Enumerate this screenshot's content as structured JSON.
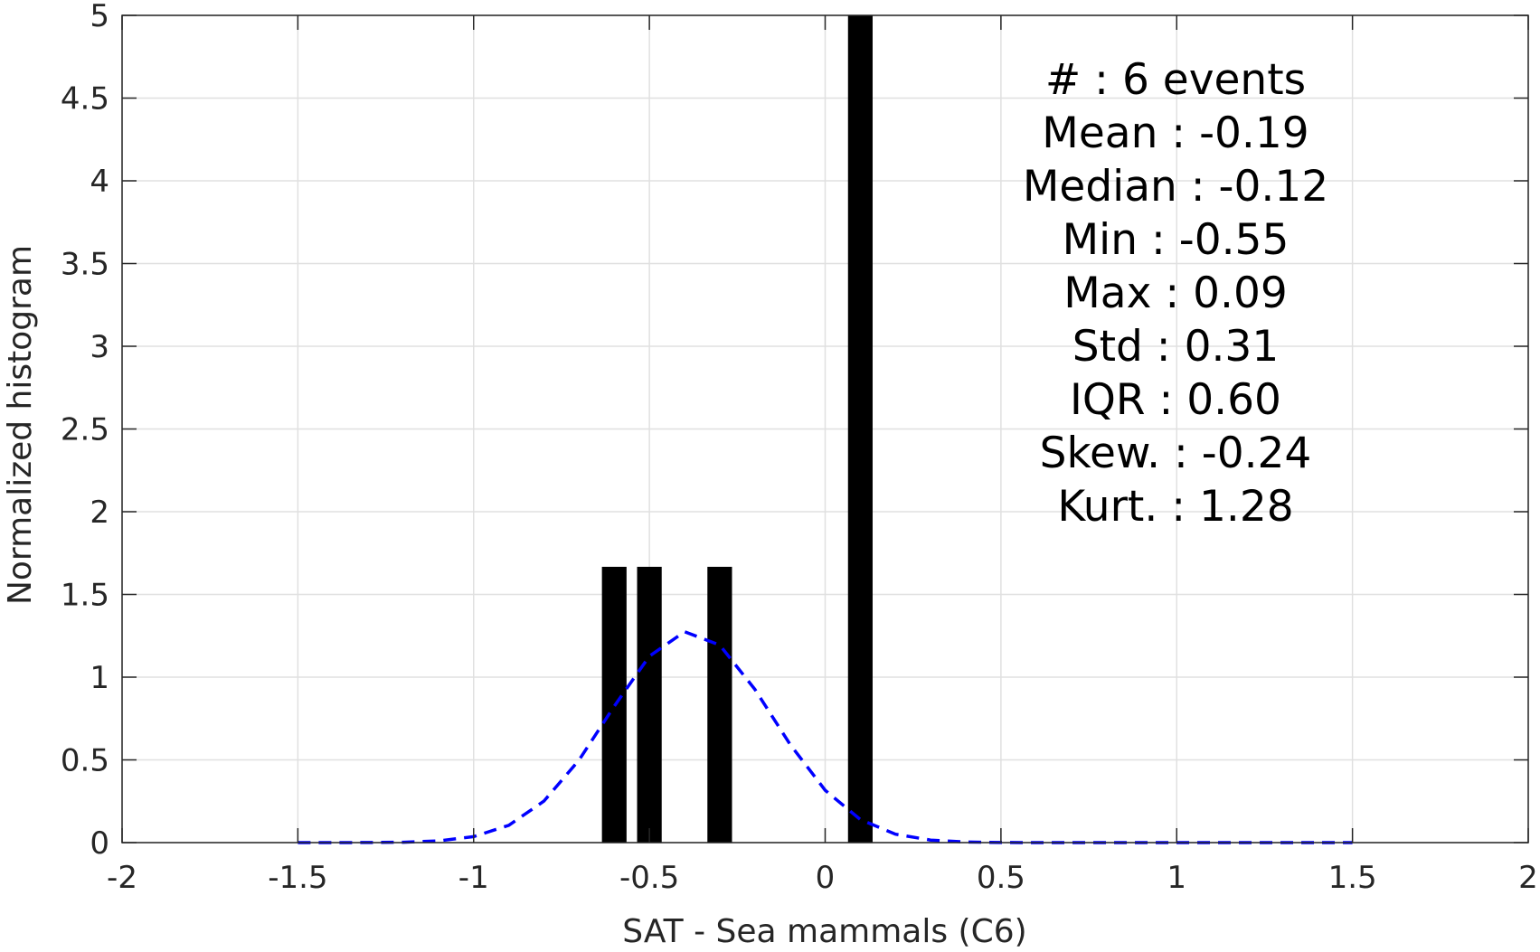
{
  "chart_data": {
    "type": "bar",
    "xlabel": "SAT - Sea mammals  (C6)",
    "ylabel": "Normalized histogram",
    "xlim": [
      -2,
      2
    ],
    "ylim": [
      0,
      5
    ],
    "x_ticks": [
      -2,
      -1.5,
      -1,
      -0.5,
      0,
      0.5,
      1,
      1.5,
      2
    ],
    "x_tick_labels": [
      "-2",
      "-1.5",
      "-1",
      "-0.5",
      "0",
      "0.5",
      "1",
      "1.5",
      "2"
    ],
    "y_ticks": [
      0,
      0.5,
      1,
      1.5,
      2,
      2.5,
      3,
      3.5,
      4,
      4.5,
      5
    ],
    "y_tick_labels": [
      "0",
      "0.5",
      "1",
      "1.5",
      "2",
      "2.5",
      "3",
      "3.5",
      "4",
      "4.5",
      "5"
    ],
    "grid": true,
    "bars": [
      {
        "x": -0.6,
        "value": 1.667
      },
      {
        "x": -0.5,
        "value": 1.667
      },
      {
        "x": -0.3,
        "value": 1.667
      },
      {
        "x": 0.1,
        "value": 5
      }
    ],
    "bar_width": 0.07,
    "bar_color": "#000000",
    "fit_curve": {
      "style": "dashed",
      "color": "#0000ff",
      "x": [
        -1.5,
        -1.4,
        -1.3,
        -1.2,
        -1.1,
        -1.0,
        -0.9,
        -0.8,
        -0.7,
        -0.6,
        -0.5,
        -0.4,
        -0.3,
        -0.2,
        -0.1,
        0.0,
        0.1,
        0.2,
        0.3,
        0.4,
        0.5,
        0.6,
        0.7,
        0.8,
        0.9,
        1.0,
        1.1,
        1.2,
        1.3,
        1.4,
        1.5
      ],
      "y": [
        0.0,
        0.0001,
        0.0005,
        0.0024,
        0.0102,
        0.0358,
        0.1041,
        0.2506,
        0.4996,
        0.8246,
        1.1269,
        1.2749,
        1.1942,
        0.9262,
        0.5948,
        0.3162,
        0.1392,
        0.0507,
        0.0153,
        0.0038,
        0.0008,
        0.0001,
        0.0,
        0.0,
        0.0,
        0.0,
        0.0,
        0.0,
        0.0,
        0.0,
        0.0
      ]
    },
    "annotations": [
      "#  : 6 events",
      "Mean : -0.19",
      "Median : -0.12",
      "Min : -0.55",
      "Max : 0.09",
      "Std : 0.31",
      "IQR : 0.60",
      "Skew. : -0.24",
      "Kurt. : 1.28"
    ]
  }
}
